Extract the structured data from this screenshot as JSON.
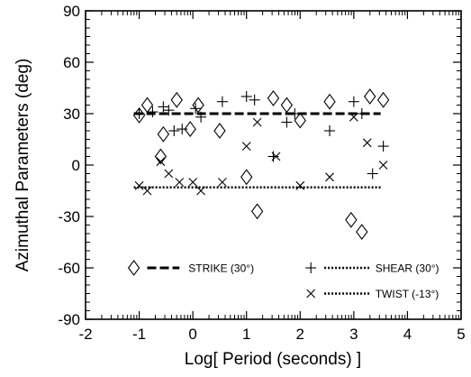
{
  "chart_data": {
    "type": "scatter",
    "title": "",
    "xlabel": "Log[ Period (seconds) ]",
    "ylabel": "Azimuthal Parameters (deg)",
    "xlim": [
      -2,
      5
    ],
    "ylim": [
      -90,
      90
    ],
    "x_ticks": [
      -2,
      -1,
      0,
      1,
      2,
      3,
      4,
      5
    ],
    "y_ticks": [
      -90,
      -60,
      -30,
      0,
      30,
      60,
      90
    ],
    "grid": false,
    "legend_placement": "bottom",
    "legend": [
      {
        "label": "STRIKE (30°)",
        "marker": "diamond",
        "line": "dashed"
      },
      {
        "label": "SHEAR (30°)",
        "marker": "plus",
        "line": "dotted"
      },
      {
        "label": "TWIST (-13°)",
        "marker": "cross",
        "line": "dotted"
      }
    ],
    "reference_lines": [
      {
        "series": "strike",
        "y": 30,
        "x": [
          -1.1,
          3.5
        ],
        "style": "dashed"
      },
      {
        "series": "twist",
        "y": -13,
        "x": [
          -1.1,
          3.5
        ],
        "style": "dotted"
      }
    ],
    "series": [
      {
        "name": "STRIKE (30°)",
        "marker": "diamond",
        "points": [
          [
            -1.0,
            29
          ],
          [
            -0.85,
            35
          ],
          [
            -0.6,
            5
          ],
          [
            -0.55,
            18
          ],
          [
            -0.3,
            38
          ],
          [
            -0.05,
            21
          ],
          [
            0.1,
            35
          ],
          [
            0.5,
            20
          ],
          [
            1.0,
            -7
          ],
          [
            1.2,
            -27
          ],
          [
            1.5,
            39
          ],
          [
            1.75,
            35
          ],
          [
            2.0,
            26
          ],
          [
            2.55,
            37
          ],
          [
            2.95,
            -32
          ],
          [
            3.15,
            -39
          ],
          [
            3.3,
            40
          ],
          [
            3.55,
            38
          ]
        ]
      },
      {
        "name": "SHEAR (30°)",
        "marker": "plus",
        "points": [
          [
            -1.0,
            30
          ],
          [
            -0.75,
            31
          ],
          [
            -0.55,
            34
          ],
          [
            -0.45,
            32
          ],
          [
            -0.35,
            20
          ],
          [
            -0.2,
            21
          ],
          [
            0.05,
            33
          ],
          [
            0.15,
            28
          ],
          [
            0.55,
            37
          ],
          [
            1.0,
            40
          ],
          [
            1.15,
            38
          ],
          [
            1.5,
            5
          ],
          [
            1.75,
            25
          ],
          [
            1.9,
            30
          ],
          [
            2.55,
            20
          ],
          [
            3.0,
            37
          ],
          [
            3.15,
            30
          ],
          [
            3.35,
            -5
          ],
          [
            3.55,
            11
          ]
        ]
      },
      {
        "name": "TWIST (-13°)",
        "marker": "cross",
        "points": [
          [
            -1.0,
            -12
          ],
          [
            -0.85,
            -15
          ],
          [
            -0.6,
            2
          ],
          [
            -0.45,
            -5
          ],
          [
            -0.25,
            -10
          ],
          [
            0.0,
            -10
          ],
          [
            0.15,
            -15
          ],
          [
            0.55,
            -10
          ],
          [
            1.0,
            11
          ],
          [
            1.2,
            25
          ],
          [
            1.55,
            5
          ],
          [
            2.0,
            -12
          ],
          [
            2.55,
            -7
          ],
          [
            3.0,
            28
          ],
          [
            3.25,
            13
          ],
          [
            3.55,
            0
          ]
        ]
      }
    ]
  }
}
